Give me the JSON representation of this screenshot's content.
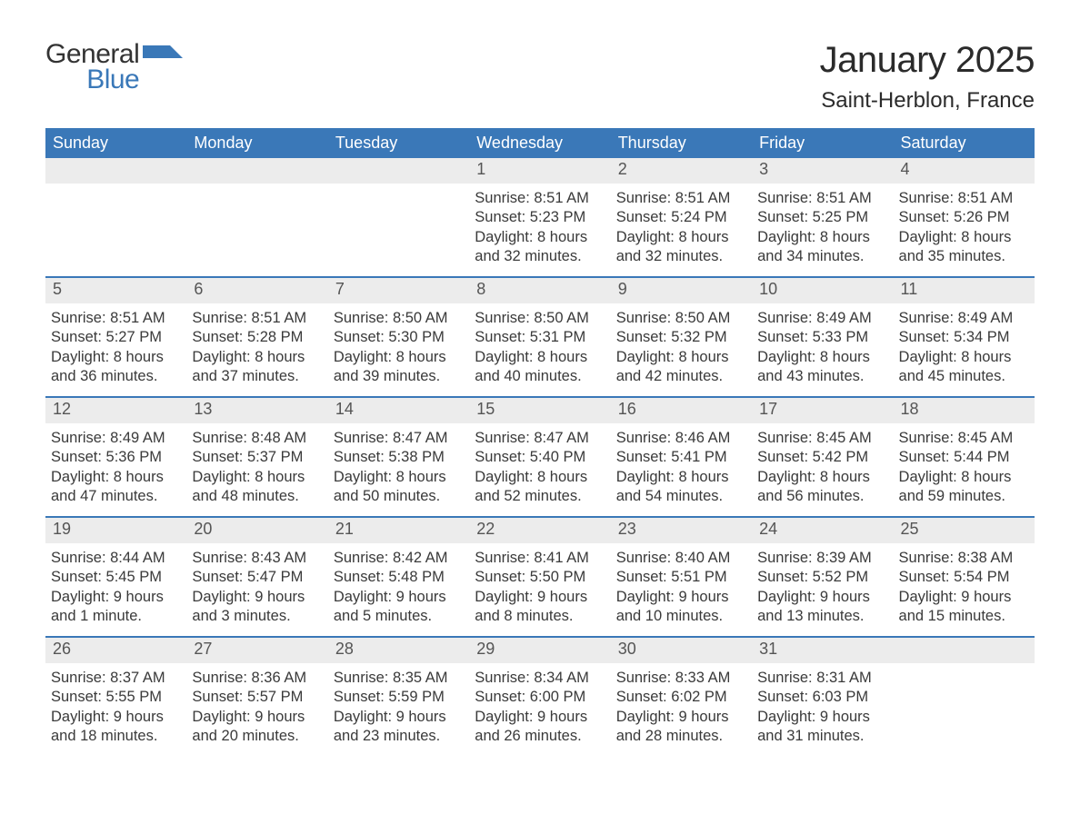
{
  "brand": {
    "word1": "General",
    "word2": "Blue",
    "accent_color": "#3a78b8",
    "text_color": "#333333"
  },
  "header": {
    "title": "January 2025",
    "location": "Saint-Herblon, France"
  },
  "colors": {
    "header_bg": "#3a78b8",
    "header_text": "#ffffff",
    "row_divider": "#3a78b8",
    "daynum_bg": "#ececec",
    "daynum_text": "#555555",
    "body_text": "#3a3a3a",
    "page_bg": "#ffffff"
  },
  "typography": {
    "title_fontsize": 40,
    "location_fontsize": 24,
    "weekday_fontsize": 18,
    "daynum_fontsize": 18,
    "body_fontsize": 16.5,
    "font_family": "Arial"
  },
  "weekdays": [
    "Sunday",
    "Monday",
    "Tuesday",
    "Wednesday",
    "Thursday",
    "Friday",
    "Saturday"
  ],
  "weeks": [
    [
      null,
      null,
      null,
      {
        "day": "1",
        "sunrise": "Sunrise: 8:51 AM",
        "sunset": "Sunset: 5:23 PM",
        "dl1": "Daylight: 8 hours",
        "dl2": "and 32 minutes."
      },
      {
        "day": "2",
        "sunrise": "Sunrise: 8:51 AM",
        "sunset": "Sunset: 5:24 PM",
        "dl1": "Daylight: 8 hours",
        "dl2": "and 32 minutes."
      },
      {
        "day": "3",
        "sunrise": "Sunrise: 8:51 AM",
        "sunset": "Sunset: 5:25 PM",
        "dl1": "Daylight: 8 hours",
        "dl2": "and 34 minutes."
      },
      {
        "day": "4",
        "sunrise": "Sunrise: 8:51 AM",
        "sunset": "Sunset: 5:26 PM",
        "dl1": "Daylight: 8 hours",
        "dl2": "and 35 minutes."
      }
    ],
    [
      {
        "day": "5",
        "sunrise": "Sunrise: 8:51 AM",
        "sunset": "Sunset: 5:27 PM",
        "dl1": "Daylight: 8 hours",
        "dl2": "and 36 minutes."
      },
      {
        "day": "6",
        "sunrise": "Sunrise: 8:51 AM",
        "sunset": "Sunset: 5:28 PM",
        "dl1": "Daylight: 8 hours",
        "dl2": "and 37 minutes."
      },
      {
        "day": "7",
        "sunrise": "Sunrise: 8:50 AM",
        "sunset": "Sunset: 5:30 PM",
        "dl1": "Daylight: 8 hours",
        "dl2": "and 39 minutes."
      },
      {
        "day": "8",
        "sunrise": "Sunrise: 8:50 AM",
        "sunset": "Sunset: 5:31 PM",
        "dl1": "Daylight: 8 hours",
        "dl2": "and 40 minutes."
      },
      {
        "day": "9",
        "sunrise": "Sunrise: 8:50 AM",
        "sunset": "Sunset: 5:32 PM",
        "dl1": "Daylight: 8 hours",
        "dl2": "and 42 minutes."
      },
      {
        "day": "10",
        "sunrise": "Sunrise: 8:49 AM",
        "sunset": "Sunset: 5:33 PM",
        "dl1": "Daylight: 8 hours",
        "dl2": "and 43 minutes."
      },
      {
        "day": "11",
        "sunrise": "Sunrise: 8:49 AM",
        "sunset": "Sunset: 5:34 PM",
        "dl1": "Daylight: 8 hours",
        "dl2": "and 45 minutes."
      }
    ],
    [
      {
        "day": "12",
        "sunrise": "Sunrise: 8:49 AM",
        "sunset": "Sunset: 5:36 PM",
        "dl1": "Daylight: 8 hours",
        "dl2": "and 47 minutes."
      },
      {
        "day": "13",
        "sunrise": "Sunrise: 8:48 AM",
        "sunset": "Sunset: 5:37 PM",
        "dl1": "Daylight: 8 hours",
        "dl2": "and 48 minutes."
      },
      {
        "day": "14",
        "sunrise": "Sunrise: 8:47 AM",
        "sunset": "Sunset: 5:38 PM",
        "dl1": "Daylight: 8 hours",
        "dl2": "and 50 minutes."
      },
      {
        "day": "15",
        "sunrise": "Sunrise: 8:47 AM",
        "sunset": "Sunset: 5:40 PM",
        "dl1": "Daylight: 8 hours",
        "dl2": "and 52 minutes."
      },
      {
        "day": "16",
        "sunrise": "Sunrise: 8:46 AM",
        "sunset": "Sunset: 5:41 PM",
        "dl1": "Daylight: 8 hours",
        "dl2": "and 54 minutes."
      },
      {
        "day": "17",
        "sunrise": "Sunrise: 8:45 AM",
        "sunset": "Sunset: 5:42 PM",
        "dl1": "Daylight: 8 hours",
        "dl2": "and 56 minutes."
      },
      {
        "day": "18",
        "sunrise": "Sunrise: 8:45 AM",
        "sunset": "Sunset: 5:44 PM",
        "dl1": "Daylight: 8 hours",
        "dl2": "and 59 minutes."
      }
    ],
    [
      {
        "day": "19",
        "sunrise": "Sunrise: 8:44 AM",
        "sunset": "Sunset: 5:45 PM",
        "dl1": "Daylight: 9 hours",
        "dl2": "and 1 minute."
      },
      {
        "day": "20",
        "sunrise": "Sunrise: 8:43 AM",
        "sunset": "Sunset: 5:47 PM",
        "dl1": "Daylight: 9 hours",
        "dl2": "and 3 minutes."
      },
      {
        "day": "21",
        "sunrise": "Sunrise: 8:42 AM",
        "sunset": "Sunset: 5:48 PM",
        "dl1": "Daylight: 9 hours",
        "dl2": "and 5 minutes."
      },
      {
        "day": "22",
        "sunrise": "Sunrise: 8:41 AM",
        "sunset": "Sunset: 5:50 PM",
        "dl1": "Daylight: 9 hours",
        "dl2": "and 8 minutes."
      },
      {
        "day": "23",
        "sunrise": "Sunrise: 8:40 AM",
        "sunset": "Sunset: 5:51 PM",
        "dl1": "Daylight: 9 hours",
        "dl2": "and 10 minutes."
      },
      {
        "day": "24",
        "sunrise": "Sunrise: 8:39 AM",
        "sunset": "Sunset: 5:52 PM",
        "dl1": "Daylight: 9 hours",
        "dl2": "and 13 minutes."
      },
      {
        "day": "25",
        "sunrise": "Sunrise: 8:38 AM",
        "sunset": "Sunset: 5:54 PM",
        "dl1": "Daylight: 9 hours",
        "dl2": "and 15 minutes."
      }
    ],
    [
      {
        "day": "26",
        "sunrise": "Sunrise: 8:37 AM",
        "sunset": "Sunset: 5:55 PM",
        "dl1": "Daylight: 9 hours",
        "dl2": "and 18 minutes."
      },
      {
        "day": "27",
        "sunrise": "Sunrise: 8:36 AM",
        "sunset": "Sunset: 5:57 PM",
        "dl1": "Daylight: 9 hours",
        "dl2": "and 20 minutes."
      },
      {
        "day": "28",
        "sunrise": "Sunrise: 8:35 AM",
        "sunset": "Sunset: 5:59 PM",
        "dl1": "Daylight: 9 hours",
        "dl2": "and 23 minutes."
      },
      {
        "day": "29",
        "sunrise": "Sunrise: 8:34 AM",
        "sunset": "Sunset: 6:00 PM",
        "dl1": "Daylight: 9 hours",
        "dl2": "and 26 minutes."
      },
      {
        "day": "30",
        "sunrise": "Sunrise: 8:33 AM",
        "sunset": "Sunset: 6:02 PM",
        "dl1": "Daylight: 9 hours",
        "dl2": "and 28 minutes."
      },
      {
        "day": "31",
        "sunrise": "Sunrise: 8:31 AM",
        "sunset": "Sunset: 6:03 PM",
        "dl1": "Daylight: 9 hours",
        "dl2": "and 31 minutes."
      },
      null
    ]
  ]
}
